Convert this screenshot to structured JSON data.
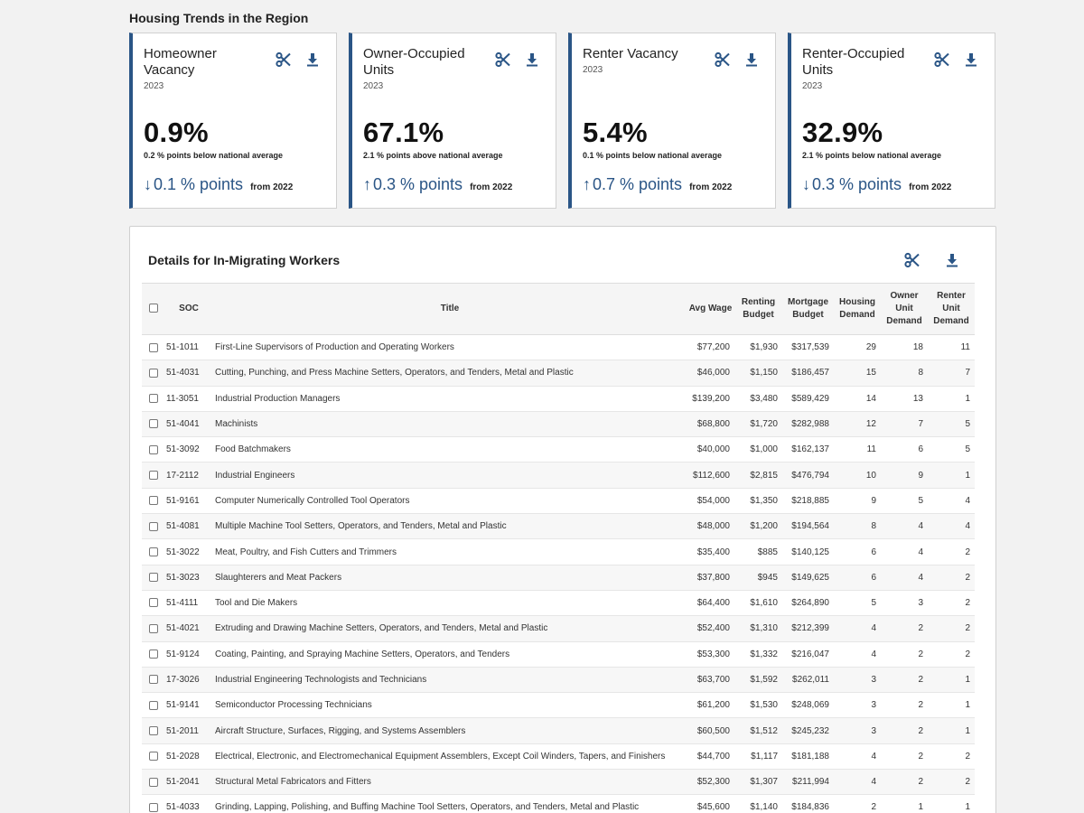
{
  "section_title": "Housing Trends in the Region",
  "colors": {
    "accent": "#2a5586"
  },
  "icons": {
    "clip": "scissors-icon",
    "download": "download-icon",
    "up": "arrow-up-icon",
    "down": "arrow-down-icon"
  },
  "cards": [
    {
      "title": "Homeowner Vacancy",
      "year": "2023",
      "big": "0.9%",
      "sub": "0.2 % points below national average",
      "arrow": "↓",
      "direction": "down",
      "change": "0.1 % points",
      "from": "from 2022"
    },
    {
      "title": "Owner-Occupied Units",
      "year": "2023",
      "big": "67.1%",
      "sub": "2.1 % points above national average",
      "arrow": "↑",
      "direction": "up",
      "change": "0.3 % points",
      "from": "from 2022"
    },
    {
      "title": "Renter Vacancy",
      "year": "2023",
      "big": "5.4%",
      "sub": "0.1 % points below national average",
      "arrow": "↑",
      "direction": "up",
      "change": "0.7 % points",
      "from": "from 2022"
    },
    {
      "title": "Renter-Occupied Units",
      "year": "2023",
      "big": "32.9%",
      "sub": "2.1 % points below national average",
      "arrow": "↓",
      "direction": "down",
      "change": "0.3 % points",
      "from": "from 2022"
    }
  ],
  "details": {
    "title": "Details for In-Migrating Workers",
    "columns": [
      "SOC",
      "Title",
      "Avg Wage",
      "Renting Budget",
      "Mortgage Budget",
      "Housing Demand",
      "Owner Unit Demand",
      "Renter Unit Demand"
    ],
    "rows": [
      [
        "51-1011",
        "First-Line Supervisors of Production and Operating Workers",
        "$77,200",
        "$1,930",
        "$317,539",
        "29",
        "18",
        "11"
      ],
      [
        "51-4031",
        "Cutting, Punching, and Press Machine Setters, Operators, and Tenders, Metal and Plastic",
        "$46,000",
        "$1,150",
        "$186,457",
        "15",
        "8",
        "7"
      ],
      [
        "11-3051",
        "Industrial Production Managers",
        "$139,200",
        "$3,480",
        "$589,429",
        "14",
        "13",
        "1"
      ],
      [
        "51-4041",
        "Machinists",
        "$68,800",
        "$1,720",
        "$282,988",
        "12",
        "7",
        "5"
      ],
      [
        "51-3092",
        "Food Batchmakers",
        "$40,000",
        "$1,000",
        "$162,137",
        "11",
        "6",
        "5"
      ],
      [
        "17-2112",
        "Industrial Engineers",
        "$112,600",
        "$2,815",
        "$476,794",
        "10",
        "9",
        "1"
      ],
      [
        "51-9161",
        "Computer Numerically Controlled Tool Operators",
        "$54,000",
        "$1,350",
        "$218,885",
        "9",
        "5",
        "4"
      ],
      [
        "51-4081",
        "Multiple Machine Tool Setters, Operators, and Tenders, Metal and Plastic",
        "$48,000",
        "$1,200",
        "$194,564",
        "8",
        "4",
        "4"
      ],
      [
        "51-3022",
        "Meat, Poultry, and Fish Cutters and Trimmers",
        "$35,400",
        "$885",
        "$140,125",
        "6",
        "4",
        "2"
      ],
      [
        "51-3023",
        "Slaughterers and Meat Packers",
        "$37,800",
        "$945",
        "$149,625",
        "6",
        "4",
        "2"
      ],
      [
        "51-4111",
        "Tool and Die Makers",
        "$64,400",
        "$1,610",
        "$264,890",
        "5",
        "3",
        "2"
      ],
      [
        "51-4021",
        "Extruding and Drawing Machine Setters, Operators, and Tenders, Metal and Plastic",
        "$52,400",
        "$1,310",
        "$212,399",
        "4",
        "2",
        "2"
      ],
      [
        "51-9124",
        "Coating, Painting, and Spraying Machine Setters, Operators, and Tenders",
        "$53,300",
        "$1,332",
        "$216,047",
        "4",
        "2",
        "2"
      ],
      [
        "17-3026",
        "Industrial Engineering Technologists and Technicians",
        "$63,700",
        "$1,592",
        "$262,011",
        "3",
        "2",
        "1"
      ],
      [
        "51-9141",
        "Semiconductor Processing Technicians",
        "$61,200",
        "$1,530",
        "$248,069",
        "3",
        "2",
        "1"
      ],
      [
        "51-2011",
        "Aircraft Structure, Surfaces, Rigging, and Systems Assemblers",
        "$60,500",
        "$1,512",
        "$245,232",
        "3",
        "2",
        "1"
      ],
      [
        "51-2028",
        "Electrical, Electronic, and Electromechanical Equipment Assemblers, Except Coil Winders, Tapers, and Finishers",
        "$44,700",
        "$1,117",
        "$181,188",
        "4",
        "2",
        "2"
      ],
      [
        "51-2041",
        "Structural Metal Fabricators and Fitters",
        "$52,300",
        "$1,307",
        "$211,994",
        "4",
        "2",
        "2"
      ],
      [
        "51-4033",
        "Grinding, Lapping, Polishing, and Buffing Machine Tool Setters, Operators, and Tenders, Metal and Plastic",
        "$45,600",
        "$1,140",
        "$184,836",
        "2",
        "1",
        "1"
      ]
    ]
  }
}
